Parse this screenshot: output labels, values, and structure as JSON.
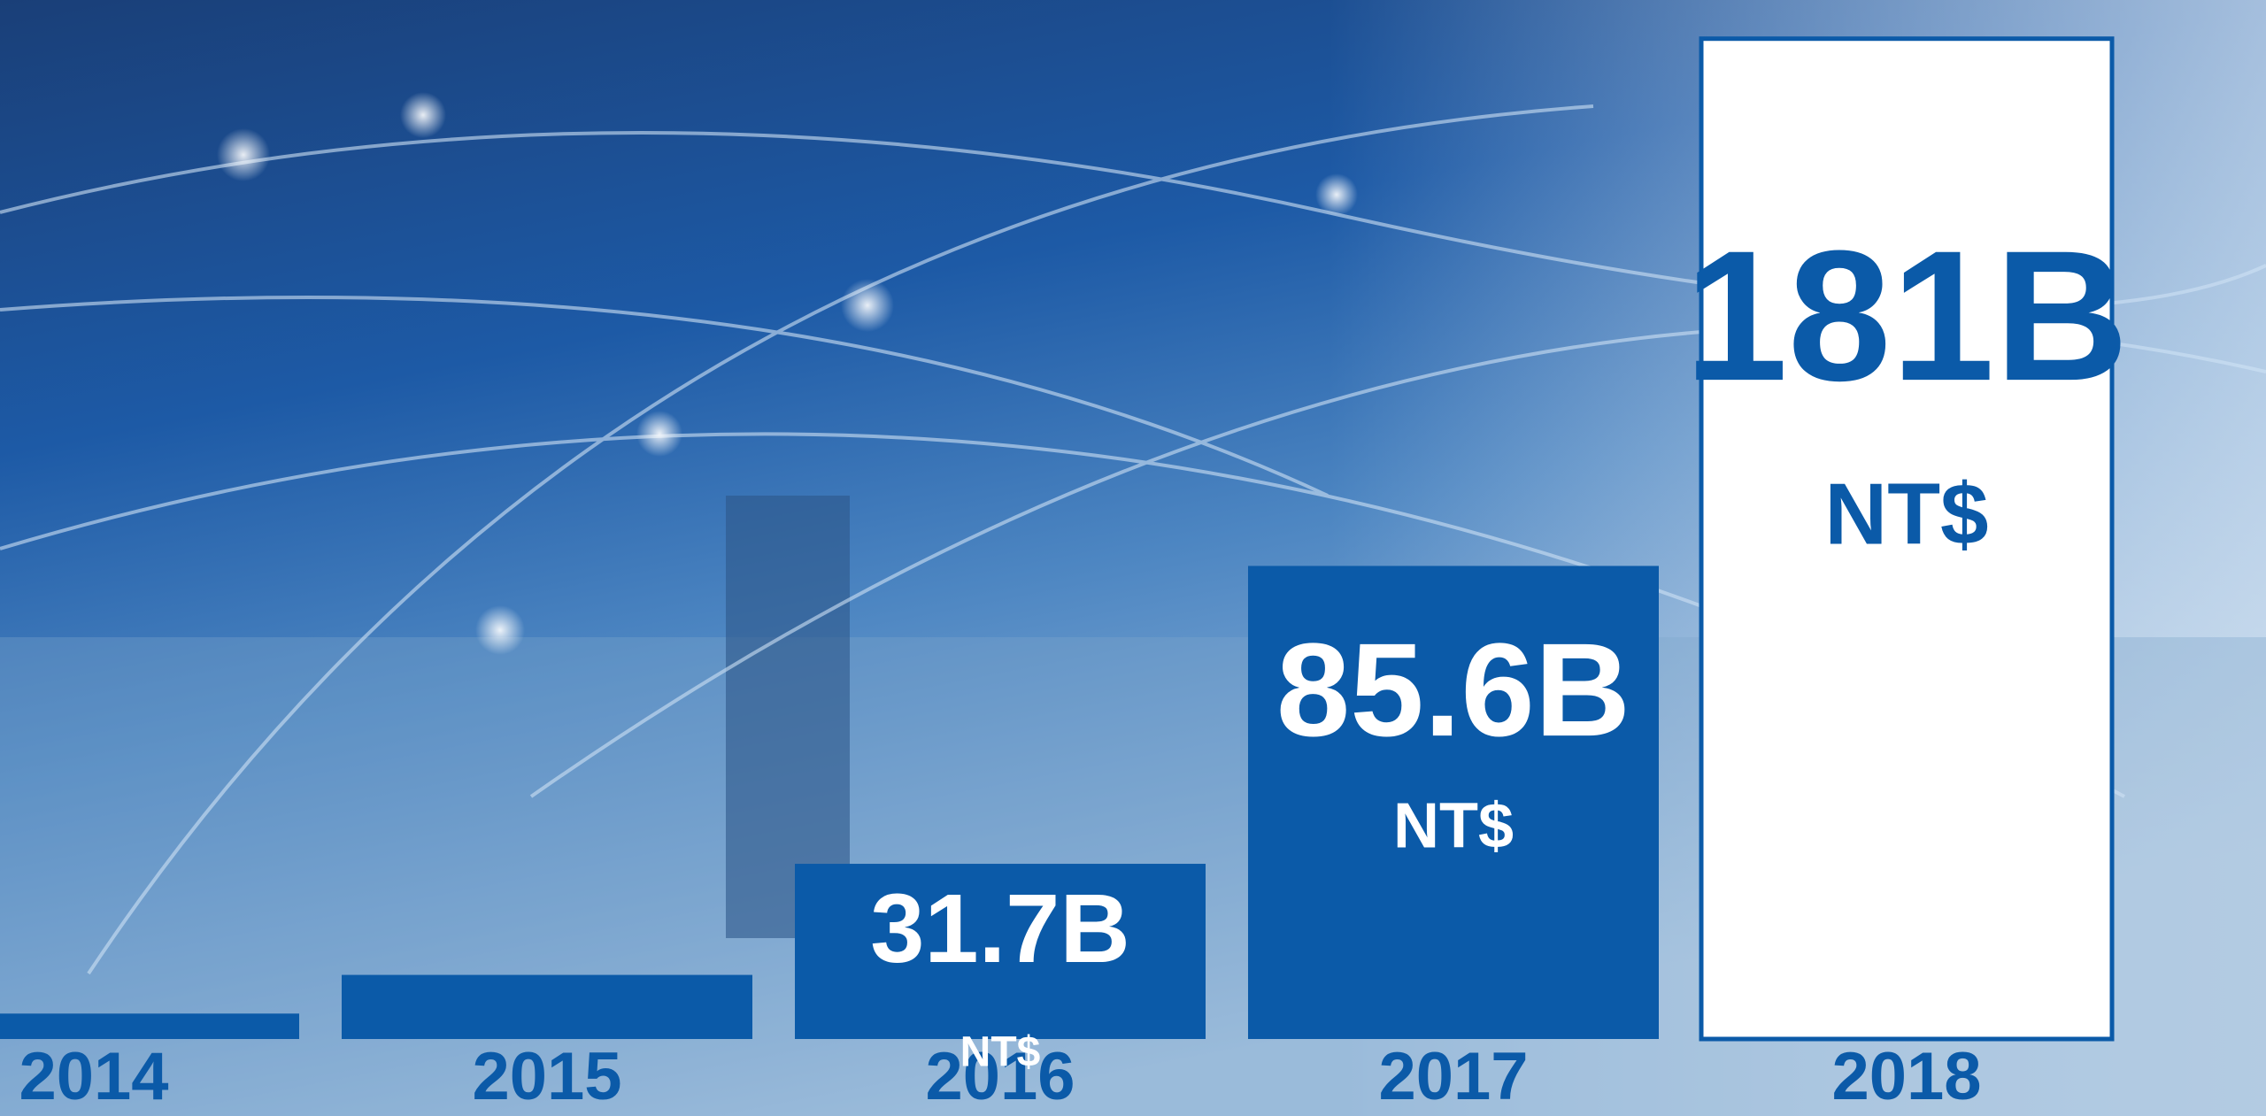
{
  "chart_data": {
    "type": "bar",
    "categories": [
      "2014",
      "2015",
      "2016",
      "2017",
      "2018"
    ],
    "values": [
      4.6,
      11.6,
      31.7,
      85.6,
      181
    ],
    "value_labels": [
      null,
      null,
      "31.7B",
      "85.6B",
      "181B"
    ],
    "unit": "NT$",
    "colors": [
      "#0b5aa8",
      "#0b5aa8",
      "#0b5aa8",
      "#0b5aa8",
      "#ffffff"
    ],
    "edge_color": "#0b5aa8",
    "ylim": [
      0,
      188
    ]
  }
}
